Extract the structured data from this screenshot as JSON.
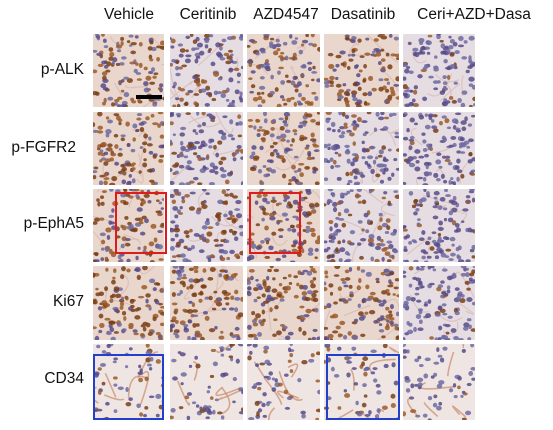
{
  "columns": [
    "Vehicle",
    "Ceritinib",
    "AZD4547",
    "Dasatinib",
    "Ceri+AZD+Dasa"
  ],
  "rows": [
    "p-ALK",
    "p-FGFR2",
    "p-EphA5",
    "Ki67",
    "CD34"
  ],
  "colors": {
    "highlight_red": "#e01b1b",
    "highlight_blue": "#2340c8",
    "scalebar": "#000000",
    "stain_brown": "#8a4a1c",
    "nuclei_blue": "#5a4d8a"
  },
  "stain_level": [
    [
      0.55,
      0.35,
      0.45,
      0.55,
      0.1
    ],
    [
      0.7,
      0.35,
      0.55,
      0.2,
      0.1
    ],
    [
      0.6,
      0.4,
      0.5,
      0.3,
      0.15
    ],
    [
      0.75,
      0.6,
      0.7,
      0.7,
      0.1
    ],
    [
      0.3,
      0.25,
      0.3,
      0.35,
      0.1
    ]
  ],
  "highlights": [
    {
      "row": 2,
      "col": 0,
      "color": "red"
    },
    {
      "row": 2,
      "col": 2,
      "color": "red"
    },
    {
      "row": 4,
      "col": 0,
      "color": "blue"
    },
    {
      "row": 4,
      "col": 3,
      "color": "blue"
    }
  ]
}
